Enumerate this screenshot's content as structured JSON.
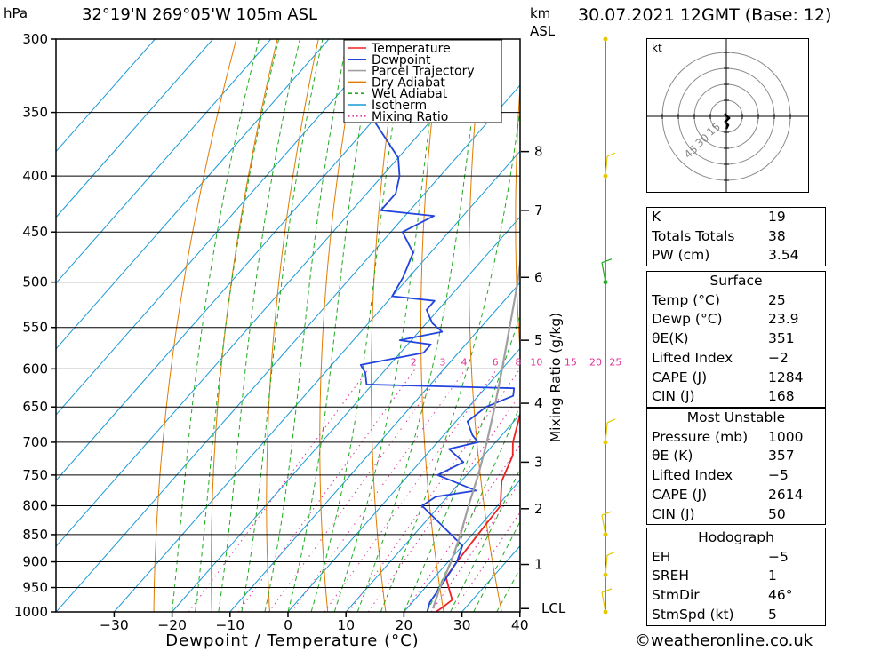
{
  "header": {
    "location": "32°19'N  269°05'W  105m  ASL",
    "datetime": "30.07.2021  12GMT  (Base: 12)",
    "hpa_unit": "hPa",
    "km_unit": "km",
    "asl_unit": "ASL"
  },
  "chart_data": {
    "type": "line",
    "title": "",
    "xlabel": "Dewpoint / Temperature (°C)",
    "ylabel": "hPa",
    "y2label": "km ASL",
    "mixing_ratio_label": "Mixing Ratio (g/kg)",
    "xlim": [
      -40,
      40
    ],
    "ylim": [
      1000,
      300
    ],
    "x_ticks": [
      -30,
      -20,
      -10,
      0,
      10,
      20,
      30,
      40
    ],
    "x_tick_labels": [
      "−30",
      "−20",
      "−10",
      "0",
      "10",
      "20",
      "30",
      "40"
    ],
    "pressure_levels": [
      300,
      350,
      400,
      450,
      500,
      550,
      600,
      650,
      700,
      750,
      800,
      850,
      900,
      950,
      1000
    ],
    "km_ticks": [
      {
        "label": "8",
        "p": 380
      },
      {
        "label": "7",
        "p": 430
      },
      {
        "label": "6",
        "p": 495
      },
      {
        "label": "5",
        "p": 565
      },
      {
        "label": "4",
        "p": 645
      },
      {
        "label": "3",
        "p": 730
      },
      {
        "label": "2",
        "p": 805
      },
      {
        "label": "1",
        "p": 905
      },
      {
        "label": "LCL",
        "p": 993
      }
    ],
    "mixing_ratio_values": [
      "2",
      "3",
      "4",
      "6",
      "8",
      "10",
      "15",
      "20",
      "25"
    ],
    "legend": [
      {
        "name": "Temperature",
        "color": "#ee2222",
        "style": "solid"
      },
      {
        "name": "Dewpoint",
        "color": "#2244dd",
        "style": "solid"
      },
      {
        "name": "Parcel Trajectory",
        "color": "#a0a0a0",
        "style": "solid"
      },
      {
        "name": "Dry Adiabat",
        "color": "#e07b00",
        "style": "solid"
      },
      {
        "name": "Wet Adiabat",
        "color": "#22aa22",
        "style": "dashed"
      },
      {
        "name": "Isotherm",
        "color": "#1a9ad6",
        "style": "solid"
      },
      {
        "name": "Mixing Ratio",
        "color": "#dd3399",
        "style": "dotted"
      }
    ],
    "series": [
      {
        "name": "Temperature",
        "color": "#ee2222",
        "points": [
          [
            1000,
            25.5
          ],
          [
            990,
            26.0
          ],
          [
            975,
            26.5
          ],
          [
            960,
            25.0
          ],
          [
            930,
            22.0
          ],
          [
            900,
            21.5
          ],
          [
            850,
            21.0
          ],
          [
            800,
            20.5
          ],
          [
            760,
            17.0
          ],
          [
            720,
            15.0
          ],
          [
            700,
            13.0
          ],
          [
            660,
            10.0
          ],
          [
            640,
            9.0
          ],
          [
            600,
            6.0
          ],
          [
            560,
            3.0
          ],
          [
            540,
            1.5
          ],
          [
            500,
            -2.0
          ],
          [
            470,
            -5.0
          ],
          [
            450,
            -7.5
          ],
          [
            420,
            -11.0
          ],
          [
            400,
            -14.0
          ],
          [
            370,
            -18.0
          ]
        ]
      },
      {
        "name": "Dewpoint",
        "color": "#2244dd",
        "points": [
          [
            1000,
            24.0
          ],
          [
            980,
            23.0
          ],
          [
            950,
            22.5
          ],
          [
            900,
            21.5
          ],
          [
            870,
            20.0
          ],
          [
            800,
            7.0
          ],
          [
            785,
            8.0
          ],
          [
            775,
            14.0
          ],
          [
            750,
            5.0
          ],
          [
            730,
            7.5
          ],
          [
            710,
            3.0
          ],
          [
            700,
            7.0
          ],
          [
            690,
            5.0
          ],
          [
            670,
            2.0
          ],
          [
            650,
            3.0
          ],
          [
            635,
            6.0
          ],
          [
            625,
            5.0
          ],
          [
            620,
            -21.0
          ],
          [
            605,
            -23.0
          ],
          [
            595,
            -25.0
          ],
          [
            580,
            -16.0
          ],
          [
            570,
            -16.0
          ],
          [
            565,
            -22.0
          ],
          [
            555,
            -16.0
          ],
          [
            545,
            -19.0
          ],
          [
            530,
            -22.0
          ],
          [
            520,
            -22.0
          ],
          [
            515,
            -30.0
          ],
          [
            495,
            -31.0
          ],
          [
            470,
            -33.0
          ],
          [
            450,
            -38.0
          ],
          [
            435,
            -35.0
          ],
          [
            430,
            -45.0
          ],
          [
            415,
            -45.0
          ],
          [
            400,
            -47.0
          ],
          [
            385,
            -50.0
          ],
          [
            350,
            -62.0
          ],
          [
            300,
            -61.0
          ]
        ]
      },
      {
        "name": "Parcel Trajectory",
        "color": "#a0a0a0",
        "points": [
          [
            993,
            24.5
          ],
          [
            950,
            22.5
          ],
          [
            900,
            20.5
          ],
          [
            850,
            18.0
          ],
          [
            800,
            15.0
          ],
          [
            750,
            12.0
          ],
          [
            700,
            8.5
          ],
          [
            650,
            4.5
          ],
          [
            600,
            0.0
          ],
          [
            550,
            -5.0
          ],
          [
            500,
            -10.5
          ],
          [
            450,
            -17.0
          ],
          [
            400,
            -24.0
          ],
          [
            370,
            -29.0
          ]
        ]
      }
    ],
    "hodograph": {
      "unit": "kt",
      "ring_labels": [
        "15",
        "30",
        "45"
      ]
    }
  },
  "indices": [
    {
      "label": "K",
      "value": "19"
    },
    {
      "label": "Totals Totals",
      "value": "38"
    },
    {
      "label": "PW (cm)",
      "value": "3.54"
    }
  ],
  "surface": {
    "title": "Surface",
    "rows": [
      {
        "label": "Temp (°C)",
        "value": "25"
      },
      {
        "label": "Dewp (°C)",
        "value": "23.9"
      },
      {
        "label": "θE(K)",
        "value": "351"
      },
      {
        "label": "Lifted Index",
        "value": "−2"
      },
      {
        "label": "CAPE (J)",
        "value": "1284"
      },
      {
        "label": "CIN (J)",
        "value": "168"
      }
    ]
  },
  "most_unstable": {
    "title": "Most Unstable",
    "rows": [
      {
        "label": "Pressure (mb)",
        "value": "1000"
      },
      {
        "label": "θE (K)",
        "value": "357"
      },
      {
        "label": "Lifted Index",
        "value": "−5"
      },
      {
        "label": "CAPE (J)",
        "value": "2614"
      },
      {
        "label": "CIN (J)",
        "value": "50"
      }
    ]
  },
  "hodograph_table": {
    "title": "Hodograph",
    "rows": [
      {
        "label": "EH",
        "value": "−5"
      },
      {
        "label": "SREH",
        "value": "1"
      },
      {
        "label": "StmDir",
        "value": "46°"
      },
      {
        "label": "StmSpd (kt)",
        "value": "5"
      }
    ]
  },
  "footer": {
    "copyright": "©weatheronline.co.uk"
  },
  "colors": {
    "temperature": "#ee2222",
    "dewpoint": "#2244dd",
    "parcel": "#a0a0a0",
    "dry_adiabat": "#e07b00",
    "wet_adiabat": "#22aa22",
    "isotherm": "#1a9ad6",
    "mixing_ratio": "#dd3399",
    "wind_barb": "#e6c800"
  }
}
